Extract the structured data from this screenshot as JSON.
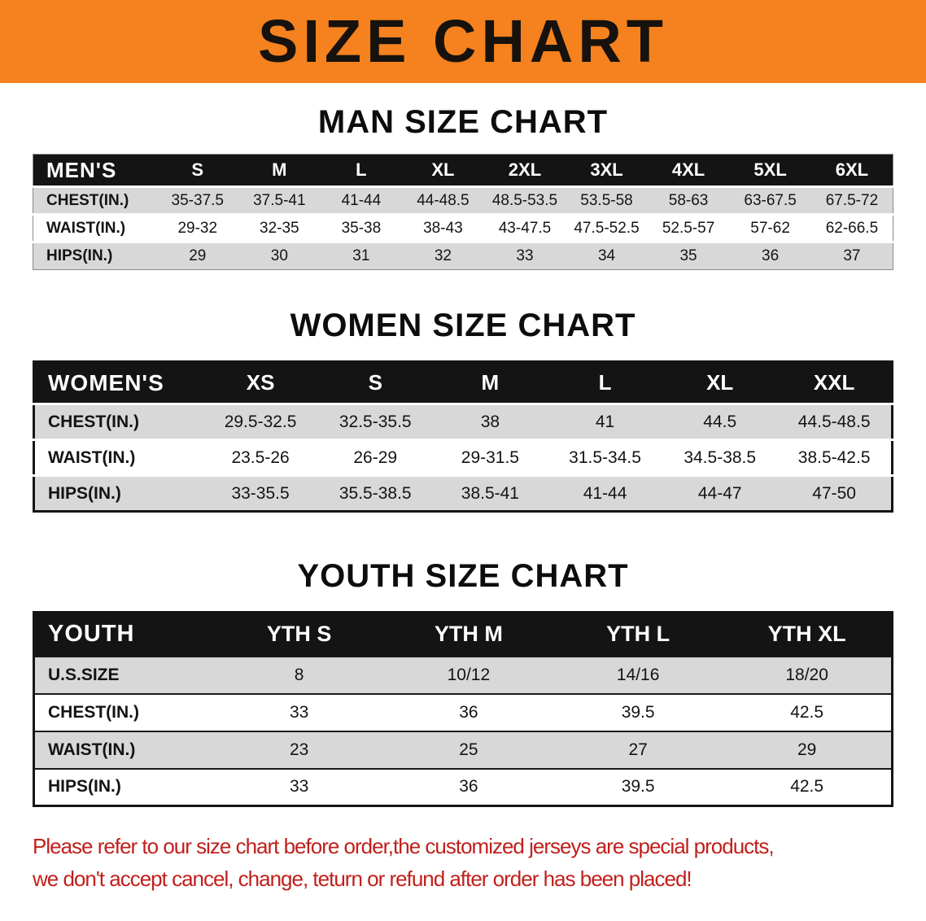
{
  "banner": {
    "title": "SIZE CHART"
  },
  "sections": [
    {
      "heading": "MAN SIZE CHART",
      "table": {
        "header": [
          "MEN'S",
          "S",
          "M",
          "L",
          "XL",
          "2XL",
          "3XL",
          "4XL",
          "5XL",
          "6XL"
        ],
        "rows": [
          [
            "CHEST(IN.)",
            "35-37.5",
            "37.5-41",
            "41-44",
            "44-48.5",
            "48.5-53.5",
            "53.5-58",
            "58-63",
            "63-67.5",
            "67.5-72"
          ],
          [
            "WAIST(IN.)",
            "29-32",
            "32-35",
            "35-38",
            "38-43",
            "43-47.5",
            "47.5-52.5",
            "52.5-57",
            "57-62",
            "62-66.5"
          ],
          [
            "HIPS(IN.)",
            "29",
            "30",
            "31",
            "32",
            "33",
            "34",
            "35",
            "36",
            "37"
          ]
        ]
      }
    },
    {
      "heading": "WOMEN SIZE CHART",
      "table": {
        "header": [
          "WOMEN'S",
          "XS",
          "S",
          "M",
          "L",
          "XL",
          "XXL"
        ],
        "rows": [
          [
            "CHEST(IN.)",
            "29.5-32.5",
            "32.5-35.5",
            "38",
            "41",
            "44.5",
            "44.5-48.5"
          ],
          [
            "WAIST(IN.)",
            "23.5-26",
            "26-29",
            "29-31.5",
            "31.5-34.5",
            "34.5-38.5",
            "38.5-42.5"
          ],
          [
            "HIPS(IN.)",
            "33-35.5",
            "35.5-38.5",
            "38.5-41",
            "41-44",
            "44-47",
            "47-50"
          ]
        ]
      }
    },
    {
      "heading": "YOUTH SIZE CHART",
      "table": {
        "header": [
          "YOUTH",
          "YTH S",
          "YTH M",
          "YTH L",
          "YTH XL"
        ],
        "rows": [
          [
            "U.S.SIZE",
            "8",
            "10/12",
            "14/16",
            "18/20"
          ],
          [
            "CHEST(IN.)",
            "33",
            "36",
            "39.5",
            "42.5"
          ],
          [
            "WAIST(IN.)",
            "23",
            "25",
            "27",
            "29"
          ],
          [
            "HIPS(IN.)",
            "33",
            "36",
            "39.5",
            "42.5"
          ]
        ]
      }
    }
  ],
  "footer": {
    "line1": "Please refer to our size chart before order,the customized jerseys are special products,",
    "line2": "we don't accept cancel, change, teturn or refund after order has been placed!"
  },
  "colors": {
    "banner_bg": "#F5821F",
    "header_bg": "#141414",
    "row_alt": "#D8D8D8",
    "footer_text": "#C0201C"
  }
}
